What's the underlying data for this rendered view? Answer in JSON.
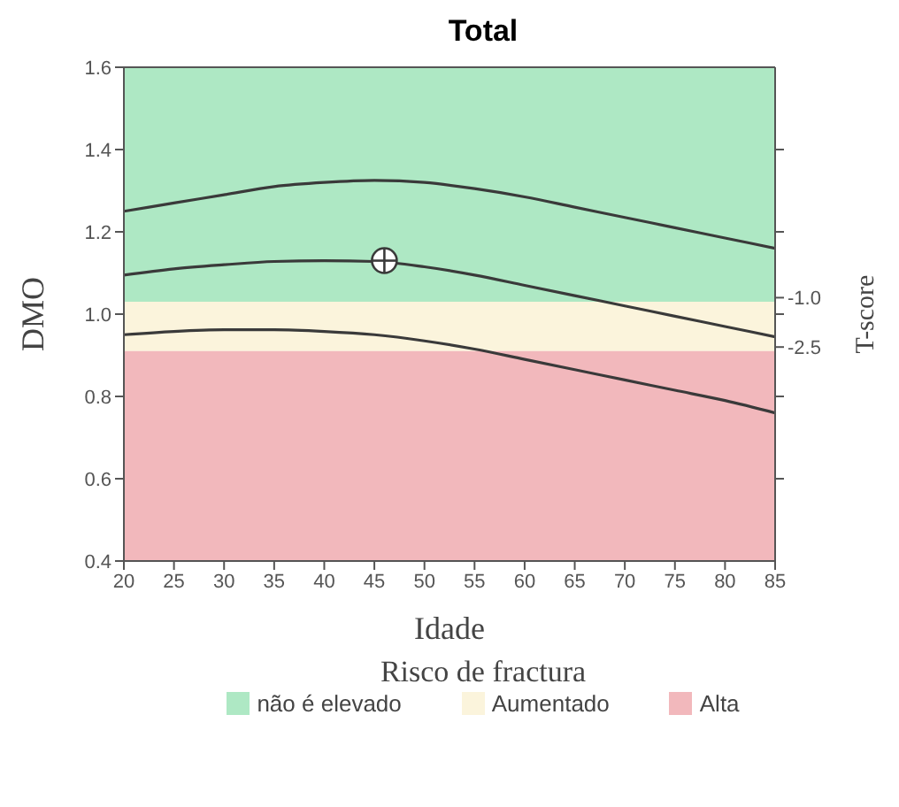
{
  "chart_data": {
    "type": "line",
    "title": "Total",
    "xlabel": "Idade",
    "ylabel": "DMO",
    "y2label": "T-score",
    "legend_title": "Risco de fractura",
    "xlim": [
      20,
      85
    ],
    "xticks": [
      20,
      25,
      30,
      35,
      40,
      45,
      50,
      55,
      60,
      65,
      70,
      75,
      80,
      85
    ],
    "ylim": [
      0.4,
      1.6
    ],
    "yticks": [
      0.4,
      0.6,
      0.8,
      {
        "value": 1.0,
        "label": "1.0"
      },
      1.2,
      1.4,
      1.6
    ],
    "y2lim": [
      -9,
      6
    ],
    "y2ticks": [
      {
        "value": -6.5,
        "label": null
      },
      {
        "value": -4,
        "label": null
      },
      {
        "value": -2.5,
        "label": "-2.5"
      },
      {
        "value": -1.5,
        "label": null
      },
      {
        "value": -1,
        "label": "-1.0"
      },
      {
        "value": 1,
        "label": null
      },
      {
        "value": 3.5,
        "label": null
      }
    ],
    "grid": false,
    "legend": "bottom",
    "marker": "none",
    "line_style": "solid",
    "bands": [
      {
        "axis": "y",
        "from": 1.03,
        "to": 1.6,
        "label": "não é elevado",
        "color": "#aee8c4"
      },
      {
        "axis": "y",
        "from": 0.91,
        "to": 1.03,
        "label": "Aumentado",
        "color": "#fbf4dc"
      },
      {
        "axis": "y",
        "from": 0.4,
        "to": 0.91,
        "label": "Alta",
        "color": "#f2b8bc"
      }
    ],
    "series": [
      {
        "color": "#3a3a3a",
        "x": [
          20,
          25,
          30,
          35,
          40,
          45,
          50,
          55,
          60,
          65,
          70,
          75,
          80,
          85
        ],
        "values": [
          1.25,
          1.27,
          1.29,
          1.31,
          1.32,
          1.325,
          1.32,
          1.305,
          1.285,
          1.26,
          1.235,
          1.21,
          1.185,
          1.16
        ]
      },
      {
        "color": "#3a3a3a",
        "x": [
          20,
          25,
          30,
          35,
          40,
          45,
          50,
          55,
          60,
          65,
          70,
          75,
          80,
          85
        ],
        "values": [
          1.095,
          1.11,
          1.12,
          1.128,
          1.13,
          1.128,
          1.115,
          1.095,
          1.07,
          1.045,
          1.02,
          0.995,
          0.97,
          0.945
        ]
      },
      {
        "color": "#3a3a3a",
        "x": [
          20,
          25,
          30,
          35,
          40,
          45,
          50,
          55,
          60,
          65,
          70,
          75,
          80,
          85
        ],
        "values": [
          0.95,
          0.958,
          0.962,
          0.962,
          0.958,
          0.95,
          0.935,
          0.915,
          0.89,
          0.865,
          0.84,
          0.815,
          0.79,
          0.76
        ]
      },
      {
        "type": "scatter",
        "color": "#3a3a3a",
        "marker": "circle",
        "x": [
          46
        ],
        "values": [
          1.13
        ]
      }
    ]
  }
}
